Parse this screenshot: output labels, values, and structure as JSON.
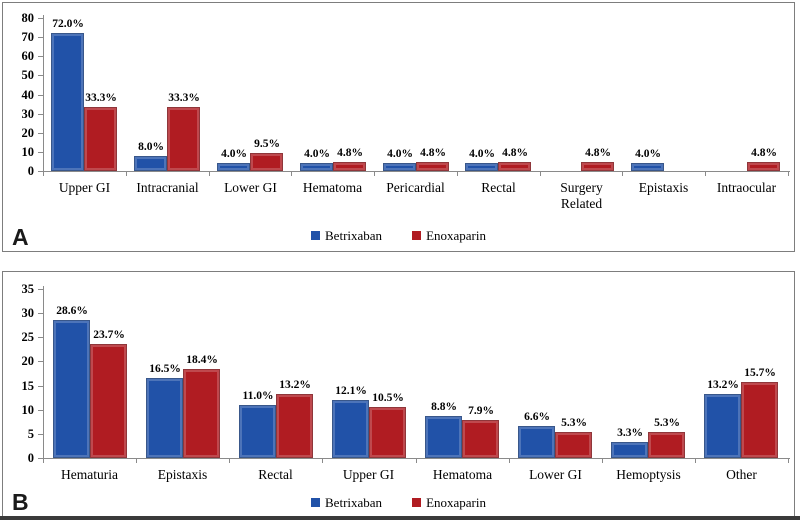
{
  "chart_data": [
    {
      "type": "bar",
      "panel": "A",
      "title": "",
      "xlabel": "",
      "ylabel": "",
      "ylim": [
        0,
        80
      ],
      "ytick_step": 10,
      "grid": false,
      "legend_position": "bottom",
      "categories": [
        "Upper GI",
        "Intracranial",
        "Lower GI",
        "Hematoma",
        "Pericardial",
        "Rectal",
        "Surgery Related",
        "Epistaxis",
        "Intraocular"
      ],
      "series": [
        {
          "name": "Betrixaban",
          "color": "#2152A8",
          "values": [
            72.0,
            8.0,
            4.0,
            4.0,
            4.0,
            4.0,
            null,
            4.0,
            null
          ],
          "labels": [
            "72.0%",
            "8.0%",
            "4.0%",
            "4.0%",
            "4.0%",
            "4.0%",
            null,
            "4.0%",
            null
          ]
        },
        {
          "name": "Enoxaparin",
          "color": "#B01C22",
          "values": [
            33.3,
            33.3,
            9.5,
            4.8,
            4.8,
            4.8,
            4.8,
            null,
            4.8
          ],
          "labels": [
            "33.3%",
            "33.3%",
            "9.5%",
            "4.8%",
            "4.8%",
            "4.8%",
            "4.8%",
            null,
            "4.8%"
          ]
        }
      ]
    },
    {
      "type": "bar",
      "panel": "B",
      "title": "",
      "xlabel": "",
      "ylabel": "",
      "ylim": [
        0,
        35
      ],
      "ytick_step": 5,
      "grid": false,
      "legend_position": "bottom",
      "categories": [
        "Hematuria",
        "Epistaxis",
        "Rectal",
        "Upper GI",
        "Hematoma",
        "Lower GI",
        "Hemoptysis",
        "Other"
      ],
      "series": [
        {
          "name": "Betrixaban",
          "color": "#2152A8",
          "values": [
            28.6,
            16.5,
            11.0,
            12.1,
            8.8,
            6.6,
            3.3,
            13.2
          ],
          "labels": [
            "28.6%",
            "16.5%",
            "11.0%",
            "12.1%",
            "8.8%",
            "6.6%",
            "3.3%",
            "13.2%"
          ]
        },
        {
          "name": "Enoxaparin",
          "color": "#B01C22",
          "values": [
            23.7,
            18.4,
            13.2,
            10.5,
            7.9,
            5.3,
            5.3,
            15.7
          ],
          "labels": [
            "23.7%",
            "18.4%",
            "13.2%",
            "10.5%",
            "7.9%",
            "5.3%",
            "5.3%",
            "15.7%"
          ]
        }
      ]
    }
  ],
  "figure": {
    "axis_color": "#8a8a8a",
    "text_color": "#000000"
  }
}
